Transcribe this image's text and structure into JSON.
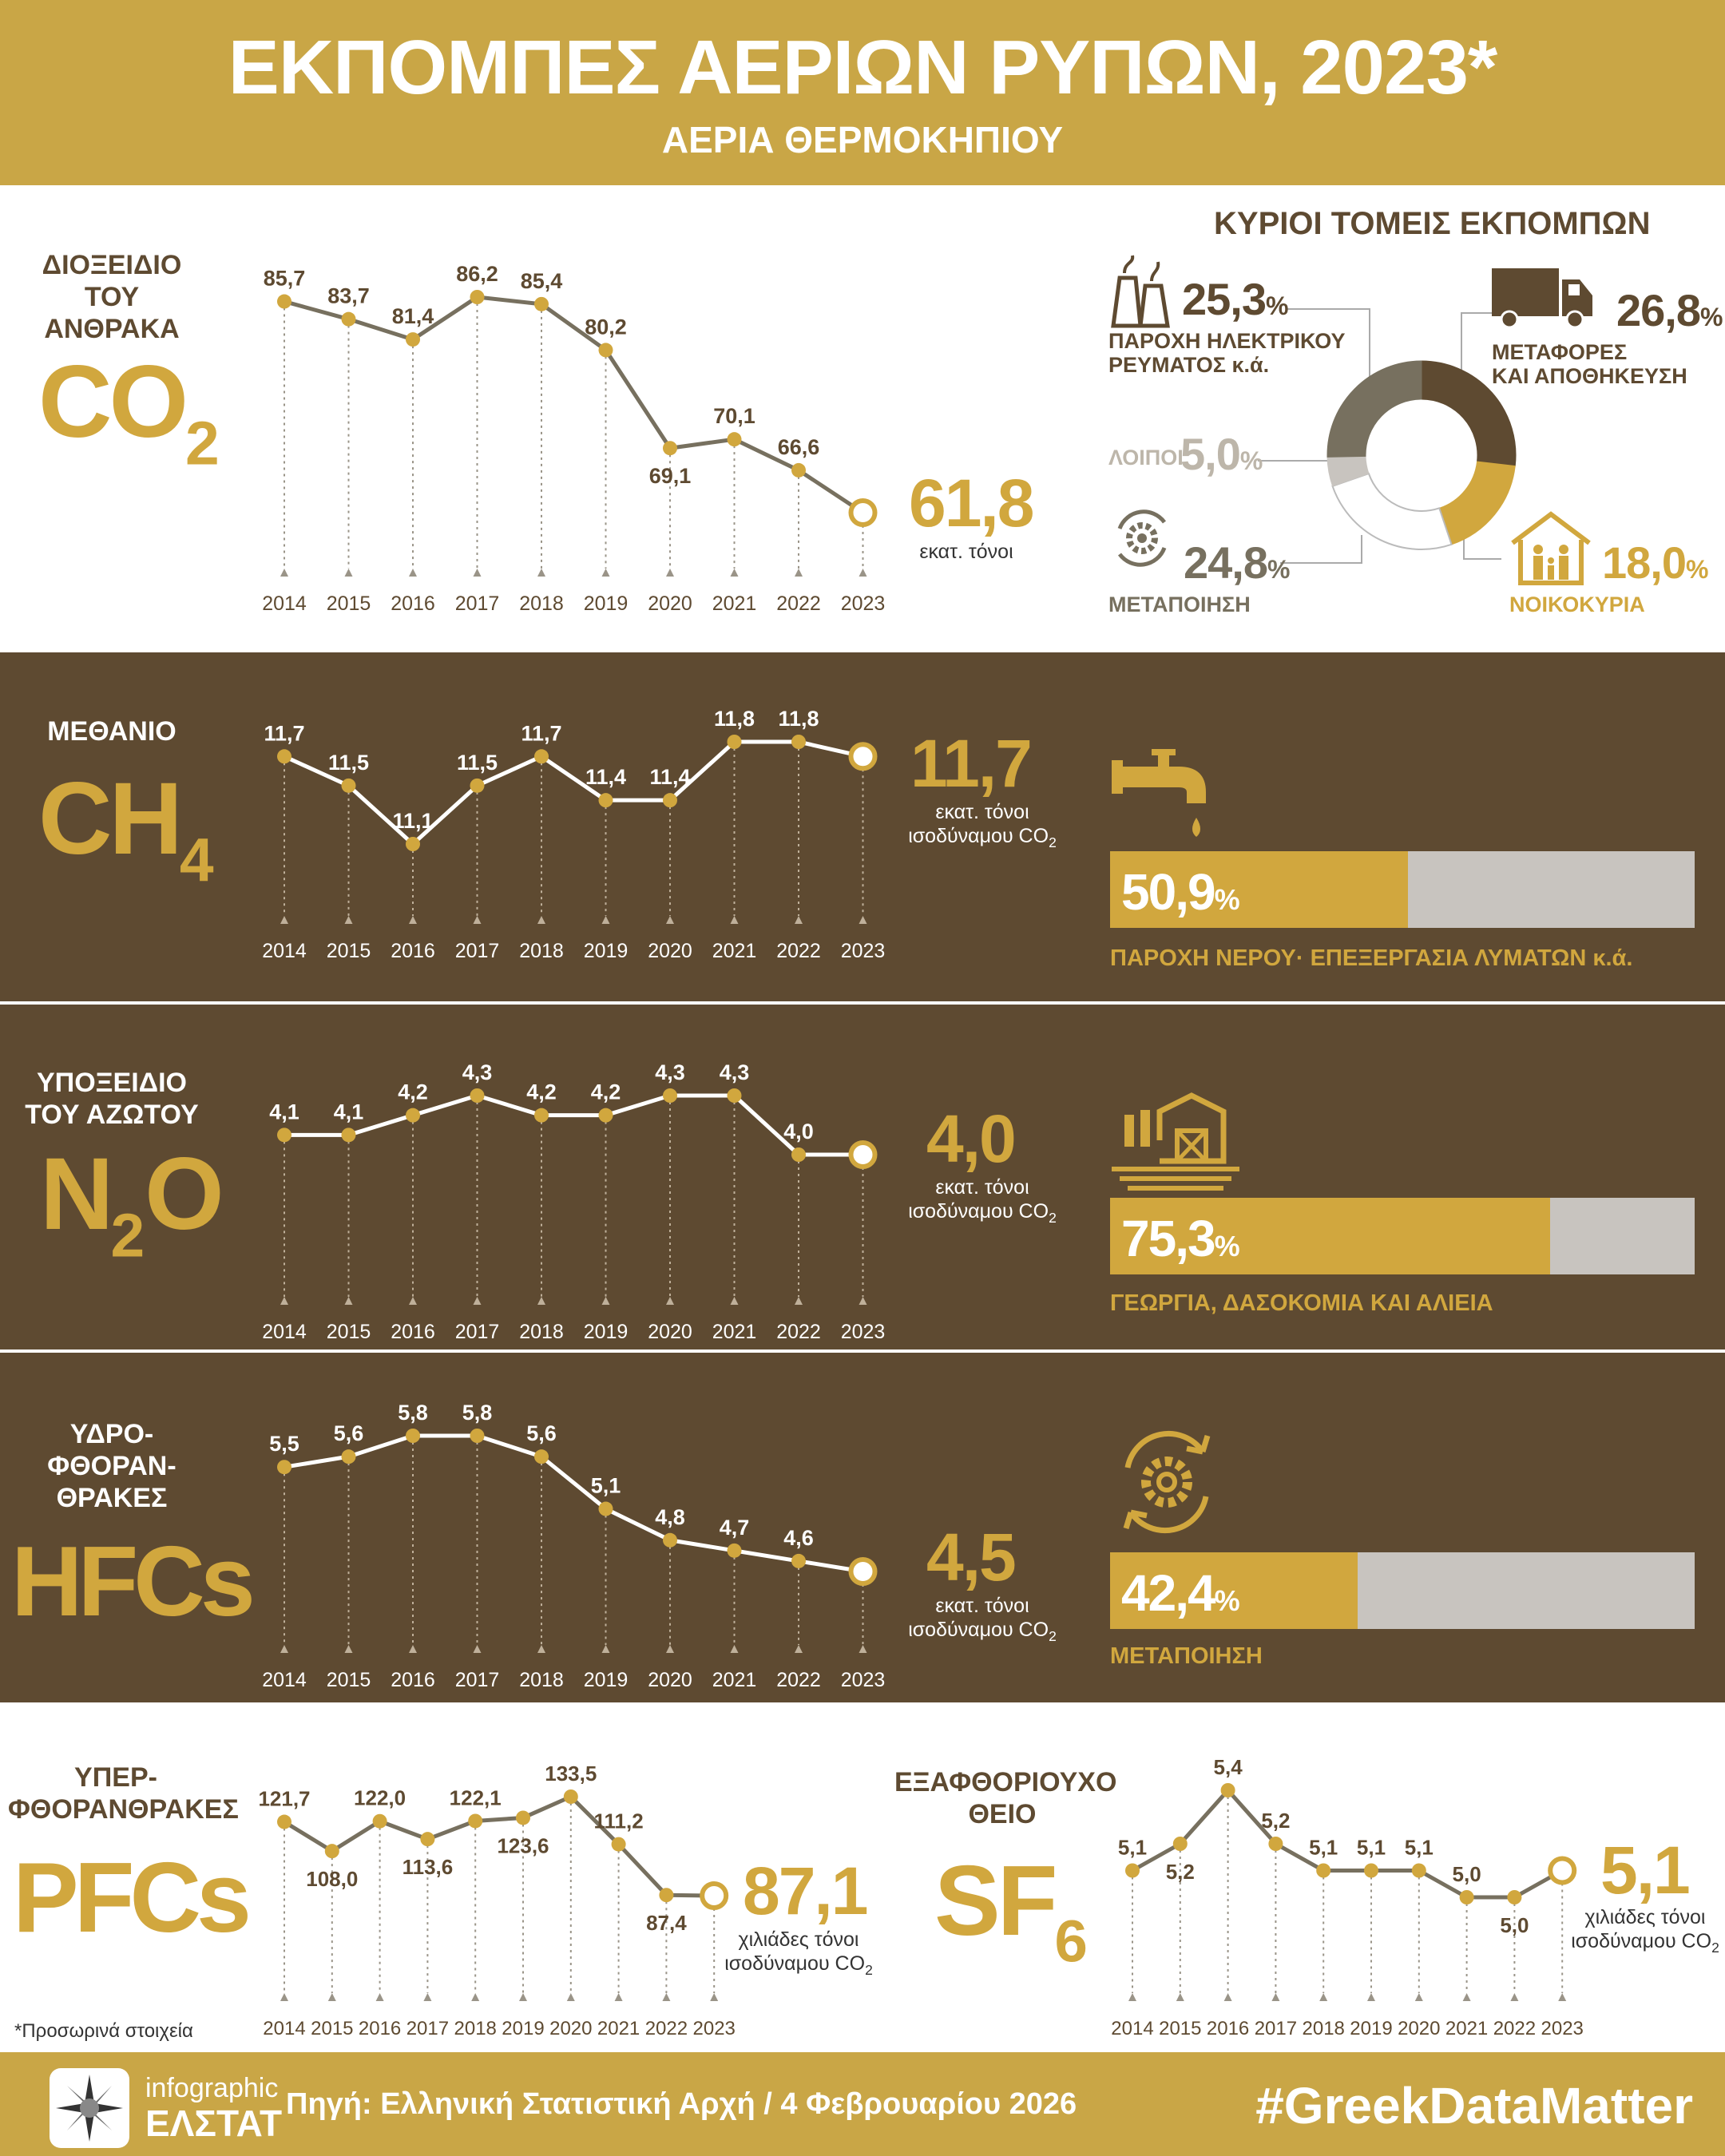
{
  "header": {
    "title": "ΕΚΠΟΜΠΕΣ ΑΕΡΙΩΝ ΡΥΠΩΝ, 2023*",
    "subtitle": "ΑΕΡΙΑ ΘΕΡΜΟΚΗΠΙΟΥ"
  },
  "colors": {
    "gold": "#d1a73e",
    "brown": "#5e4a31",
    "gray_line": "#77705f",
    "light_gray": "#c8c4bf"
  },
  "gases": {
    "co2": {
      "name": "ΔΙΟΞΕΙΔΙΟ\nΤΟΥ\nΑΝΘΡΑΚΑ",
      "formula": "CO",
      "sub": "2",
      "value": "61,8",
      "unit": "εκατ. τόνοι"
    },
    "ch4": {
      "name": "ΜΕΘΑΝΙΟ",
      "formula": "CH",
      "sub": "4",
      "value": "11,7",
      "unit_line1": "εκατ. τόνοι",
      "unit_line2": "ισοδύναμου CO",
      "unit_sub": "2",
      "share_value": "50,9",
      "share_pct": "%",
      "share": 50.9,
      "share_label": "ΠΑΡΟΧΗ ΝΕΡΟΥ· ΕΠΕΞΕΡΓΑΣΙΑ ΛΥΜΑΤΩΝ κ.ά.",
      "icon": "faucet-icon"
    },
    "n2o": {
      "name": "ΥΠΟΞΕΙΔΙΟ\nΤΟΥ ΑΖΩΤΟΥ",
      "formula_a": "N",
      "sub": "2",
      "formula_b": "O",
      "value": "4,0",
      "unit_line1": "εκατ. τόνοι",
      "unit_line2": "ισοδύναμου CO",
      "unit_sub": "2",
      "share_value": "75,3",
      "share_pct": "%",
      "share": 75.3,
      "share_label": "ΓΕΩΡΓΙΑ, ΔΑΣΟΚΟΜΙΑ ΚΑΙ ΑΛΙΕΙΑ",
      "icon": "farm-icon"
    },
    "hfcs": {
      "name": "ΥΔΡΟ-\nΦΘΟΡΑΝ-\nΘΡΑΚΕΣ",
      "formula": "HFCs",
      "value": "4,5",
      "unit_line1": "εκατ. τόνοι",
      "unit_line2": "ισοδύναμου CO",
      "unit_sub": "2",
      "share_value": "42,4",
      "share_pct": "%",
      "share": 42.4,
      "share_label": "ΜΕΤΑΠΟΙΗΣΗ",
      "icon": "gear-cycle-icon"
    },
    "pfcs": {
      "name": "ΥΠΕΡ-\nΦΘΟΡΑΝΘΡΑΚΕΣ",
      "formula": "PFCs",
      "value": "87,1",
      "unit_line1": "χιλιάδες τόνοι",
      "unit_line2": "ισοδύναμου CO",
      "unit_sub": "2"
    },
    "sf6": {
      "name": "ΕΞΑΦΘΟΡΙΟΥΧΟ\nΘΕΙΟ",
      "formula": "SF",
      "sub": "6",
      "value": "5,1",
      "unit_line1": "χιλιάδες τόνοι",
      "unit_line2": "ισοδύναμου CO",
      "unit_sub": "2"
    }
  },
  "sectors": {
    "title": "ΚΥΡΙΟΙ ΤΟΜΕΙΣ ΕΚΠΟΜΠΩΝ",
    "pct": "%",
    "items": [
      {
        "label": "ΜΕΤΑΦΟΡΕΣ\nΚΑΙ ΑΠΟΘΗΚΕΥΣΗ",
        "value": "26,8",
        "share": 26.8,
        "color": "#5e4a31",
        "icon": "truck-icon"
      },
      {
        "label": "ΝΟΙΚΟΚΥΡΙΑ",
        "value": "18,0",
        "share": 18.0,
        "color": "#d1a73e",
        "icon": "house-family-icon"
      },
      {
        "label": "ΜΕΤΑΠΟΙΗΣΗ",
        "value": "24,8",
        "share": 24.8,
        "color": "#ffffff",
        "icon": "gear-cycle-icon"
      },
      {
        "label": "ΛΟΙΠΟΙ",
        "value": "5,0",
        "share": 5.0,
        "color": "#c8c4bf",
        "icon": ""
      },
      {
        "label": "ΠΑΡΟΧΗ ΗΛΕΚΤΡΙΚΟΥ\nΡΕΥΜΑΤΟΣ κ.ά.",
        "value": "25,3",
        "share": 25.3,
        "color": "#77705f",
        "icon": "power-plant-icon"
      }
    ]
  },
  "chart_data": [
    {
      "type": "line",
      "id": "co2",
      "x": [
        "2014",
        "2015",
        "2016",
        "2017",
        "2018",
        "2019",
        "2020",
        "2021",
        "2022",
        "2023"
      ],
      "values": [
        85.7,
        83.7,
        81.4,
        86.2,
        85.4,
        80.2,
        69.1,
        70.1,
        66.6,
        61.8
      ],
      "labels": [
        "85,7",
        "83,7",
        "81,4",
        "86,2",
        "85,4",
        "80,2",
        "69,1",
        "70,1",
        "66,6",
        ""
      ],
      "label_pos": [
        "above",
        "above",
        "above",
        "above",
        "above",
        "above",
        "below",
        "above",
        "above",
        "above"
      ]
    },
    {
      "type": "line",
      "id": "ch4",
      "x": [
        "2014",
        "2015",
        "2016",
        "2017",
        "2018",
        "2019",
        "2020",
        "2021",
        "2022",
        "2023"
      ],
      "values": [
        11.7,
        11.5,
        11.1,
        11.5,
        11.7,
        11.4,
        11.4,
        11.8,
        11.8,
        11.7
      ],
      "labels": [
        "11,7",
        "11,5",
        "11,1",
        "11,5",
        "11,7",
        "11,4",
        "11,4",
        "11,8",
        "11,8",
        ""
      ],
      "label_pos": [
        "above",
        "above",
        "above",
        "above",
        "above",
        "above",
        "above",
        "above",
        "above",
        "above"
      ]
    },
    {
      "type": "line",
      "id": "n2o",
      "x": [
        "2014",
        "2015",
        "2016",
        "2017",
        "2018",
        "2019",
        "2020",
        "2021",
        "2022",
        "2023"
      ],
      "values": [
        4.1,
        4.1,
        4.2,
        4.3,
        4.2,
        4.2,
        4.3,
        4.3,
        4.0,
        4.0
      ],
      "labels": [
        "4,1",
        "4,1",
        "4,2",
        "4,3",
        "4,2",
        "4,2",
        "4,3",
        "4,3",
        "4,0",
        ""
      ],
      "label_pos": [
        "above",
        "above",
        "above",
        "above",
        "above",
        "above",
        "above",
        "above",
        "above",
        "above"
      ]
    },
    {
      "type": "line",
      "id": "hfcs",
      "x": [
        "2014",
        "2015",
        "2016",
        "2017",
        "2018",
        "2019",
        "2020",
        "2021",
        "2022",
        "2023"
      ],
      "values": [
        5.5,
        5.6,
        5.8,
        5.8,
        5.6,
        5.1,
        4.8,
        4.7,
        4.6,
        4.5
      ],
      "labels": [
        "5,5",
        "5,6",
        "5,8",
        "5,8",
        "5,6",
        "5,1",
        "4,8",
        "4,7",
        "4,6",
        ""
      ],
      "label_pos": [
        "above",
        "above",
        "above",
        "above",
        "above",
        "above",
        "above",
        "above",
        "above",
        "above"
      ]
    },
    {
      "type": "line",
      "id": "pfcs",
      "x": [
        "2014",
        "2015",
        "2016",
        "2017",
        "2018",
        "2019",
        "2020",
        "2021",
        "2022",
        "2023"
      ],
      "values": [
        121.7,
        108.0,
        122.0,
        113.6,
        122.1,
        123.6,
        133.5,
        111.2,
        87.4,
        87.1
      ],
      "labels": [
        "121,7",
        "108,0",
        "122,0",
        "113,6",
        "122,1",
        "123,6",
        "133,5",
        "111,2",
        "87,4",
        ""
      ],
      "label_pos": [
        "above",
        "below",
        "above",
        "below",
        "above",
        "below",
        "above",
        "above",
        "below",
        "above"
      ]
    },
    {
      "type": "line",
      "id": "sf6",
      "x": [
        "2014",
        "2015",
        "2016",
        "2017",
        "2018",
        "2019",
        "2020",
        "2021",
        "2022",
        "2023"
      ],
      "values": [
        5.1,
        5.2,
        5.4,
        5.2,
        5.1,
        5.1,
        5.1,
        5.0,
        5.0,
        5.1
      ],
      "labels": [
        "5,1",
        "5,2",
        "5,4",
        "5,2",
        "5,1",
        "5,1",
        "5,1",
        "5,0",
        "5,0",
        ""
      ],
      "label_pos": [
        "above",
        "below",
        "above",
        "above",
        "above",
        "above",
        "above",
        "above",
        "below",
        "above"
      ]
    }
  ],
  "footnote": "*Προσωρινά στοιχεία",
  "footer": {
    "logo_top": "infographic",
    "logo_bottom": "ΕΛΣΤΑΤ",
    "source": "Πηγή: Ελληνική Στατιστική Αρχή / 4 Φεβρουαρίου 2026",
    "hashtag": "#GreekDataMatter"
  }
}
